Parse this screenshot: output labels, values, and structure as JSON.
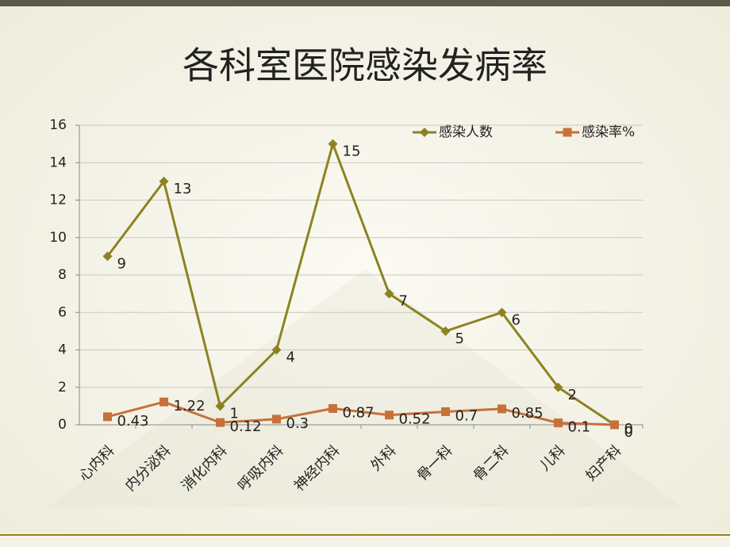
{
  "chart_data": {
    "type": "line",
    "title": "各科室医院感染发病率",
    "categories": [
      "心内科",
      "内分泌科",
      "消化内科",
      "呼吸内科",
      "神经内科",
      "外科",
      "骨一科",
      "骨二科",
      "儿科",
      "妇产科"
    ],
    "series": [
      {
        "name": "感染人数",
        "color": "#8c8222",
        "marker": "diamond",
        "values": [
          9,
          13,
          1,
          4,
          15,
          7,
          5,
          6,
          2,
          0
        ]
      },
      {
        "name": "感染率%",
        "color": "#c8703a",
        "marker": "square",
        "values": [
          0.43,
          1.22,
          0.12,
          0.3,
          0.87,
          0.52,
          0.7,
          0.85,
          0.1,
          0
        ]
      }
    ],
    "ylim": [
      0,
      16
    ],
    "yticks": [
      0,
      2,
      4,
      6,
      8,
      10,
      12,
      14,
      16
    ],
    "grid": true,
    "legend": "top-right",
    "data_labels": true
  }
}
